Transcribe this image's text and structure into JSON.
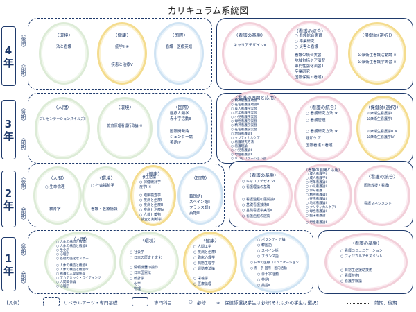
{
  "title": "カリキュラム系統図",
  "years": {
    "y4": "4年",
    "y3": "3年",
    "y2": "2年",
    "y1": "1年"
  },
  "semesters": {
    "late": "〈後期〉",
    "early": "〈前期〉"
  },
  "groups": {
    "human": "〈人間〉",
    "env": "〈環境〉",
    "health": "〈健康〉",
    "intl": "〈国際〉",
    "nurse_basic": "〈看護の基盤〉",
    "nurse_integ": "〈看護の統合〉",
    "phn": "〈保健師(選択)〉",
    "nurse_dev": "〈看護の展開と応用〉"
  },
  "y4": {
    "env": [
      "法と看護"
    ],
    "health": [
      "疫学Ⅱ ※",
      "疾患と治療Ⅴ"
    ],
    "intl": [
      "看護・医療英語"
    ],
    "nurse_basic": [
      "キャリアデザインⅡ"
    ],
    "nurse_integ": [
      "○ 看護総合実習",
      "○ 卒業研究",
      "○ 災害と看護",
      "看護の統合実習",
      "地域包括ケア演習",
      "専門性強化演習Ⅱ",
      "卒業研究",
      "国際保健・看護Ⅱ"
    ],
    "phn": [
      "公衆衛生看護活動論 ※",
      "公衆衛生看護学実習 ※"
    ]
  },
  "y3": {
    "human": [
      "プレゼンテーションスキルズⅡ"
    ],
    "env": [
      "教育原理看護行政論 ※"
    ],
    "intl": [
      "医療人類学",
      "赤十字活動Ⅱ",
      "国際開発論",
      "ジェンダー論",
      "英語Ⅳ"
    ],
    "nurse_dev": [
      "○ 精神看護援助論",
      "○ 在宅看護援助論Ⅱ",
      "○ 成人看護学実習",
      "○ 老年看護学実習",
      "○ 小児看護学実習",
      "○ 母性看護学実習",
      "○ 精神看護学実習",
      "○ 在宅看護学実習",
      "○ 地域看護論Ⅱ",
      "○ クリティカルケア",
      "○ 看護研究方法",
      "○ 看護理論",
      "○ 小児看護論Ⅱ",
      "○ 母性看護論Ⅱ",
      "○ リハビリテーション論"
    ],
    "nurse_integ": [
      "○ 看護研究方法 ★",
      "○ 看護管理",
      "○ 看護研究方法 ★",
      "緩和ケア",
      "国際看護・看護Ⅰ"
    ],
    "phn": [
      "公衆衛生看護学Ⅰ",
      "公衆衛生看護学Ⅱ",
      "公衆衛生看護学Ⅲ ※",
      "公衆衛生看護学Ⅳ"
    ]
  },
  "y2": {
    "human": [
      "○ 生命倫理",
      "教育学"
    ],
    "env": [
      "○ 社会福祉学",
      "看護・医療情報"
    ],
    "health": [
      "食生活論",
      "○ 保健統計学",
      "疫学Ⅰ ※",
      "○ 臨床検査学",
      "○ 疾病と治療Ⅱ",
      "○ 疾病と治療Ⅲ",
      "○ 疾病と治療Ⅳ",
      "○ 人体と薬物",
      "検査と判断学"
    ],
    "intl": [
      "韓国語Ⅰ",
      "スペイン語Ⅱ",
      "フランス語Ⅱ",
      "英語Ⅲ"
    ],
    "nurse_basic": [
      "○ キャリアデザインⅠ",
      "○ 看護理論の基礎",
      "○ 看護過程の展開論Ⅰ",
      "○ 基礎看護技術Ⅲ",
      "○ 基礎看護学実習Ⅱ",
      "○ 看護過程の展開"
    ],
    "nurse_dev": [
      "○ 成人看護学Ⅰ",
      "○ 成人看護学Ⅱ",
      "○ 老年看護論Ⅰ",
      "○ 小児看護論Ⅰ",
      "○ がん看護",
      "○ 精神看護論Ⅰ",
      "○ 在宅看護論Ⅰ",
      "○ 地域看護論Ⅰ",
      "○ クリティカルケアⅠ",
      "○ 母性看護論Ⅰ",
      "○ 臨床看護論",
      "○ 在宅看護論Ⅱ",
      "○ 老年看護論Ⅱ",
      "○ 母性看護論Ⅱ"
    ],
    "nurse_integ": [
      "国際救援・看護Ⅰ",
      "看護マネジメント"
    ]
  },
  "y1": {
    "human": [
      "○ 人体の構造と機能Ⅰ",
      "○ 人体の構造と機能Ⅱ",
      "○ 生化学",
      "○ 心理学",
      "○ 基礎力強化セミナーⅠ",
      "○ 人体の構造と機能Ⅲ",
      "○ 人体の構造と機能Ⅳ",
      "○ 看護の人間関係論",
      "○ アカデミック・ライティング",
      "○ 人間関係論",
      "○ 心理学",
      "○ 哲学"
    ],
    "env": [
      "○ 社会学",
      "○ 日本の歴史と文化",
      "○ 情報機器の操作",
      "○ 日本国憲法",
      "○ 統計学",
      "化学",
      "物理"
    ],
    "health": [
      "○ 人間工学",
      "○ 疾病と治療Ⅰ",
      "○ 臨床心理学",
      "○ 病態生理学",
      "○ 運動療法論",
      "○ 栄養学",
      "○ 医療倫理"
    ],
    "intl": [
      "○ ボランティア論",
      "○ 韓国語Ⅰ",
      "○ スペイン語Ⅰ",
      "○ フランス語Ⅰ",
      "○ 赤十字活動Ⅰ",
      "○ 英語Ⅰ",
      "○ 英語Ⅱ",
      "○ 赤十字 国際・国内活動",
      "○ 日本の医療コミュニケーション"
    ],
    "nurse_basic": [
      "○ 看護コミュニケーション",
      "○ フィジカルアセスメント",
      "○ 日常生活援助技術",
      "○ 看護技術Ⅰ",
      "○ 看護学概論"
    ]
  },
  "legend": {
    "example": "【凡例】",
    "liberal": "リベラルアーツ・専門基礎",
    "major": "専門科目",
    "required_mark": "○",
    "required": "必修",
    "note": "※　保健師選択学生は必修(それ以外の学生は選択)",
    "period": "前期、後期"
  }
}
